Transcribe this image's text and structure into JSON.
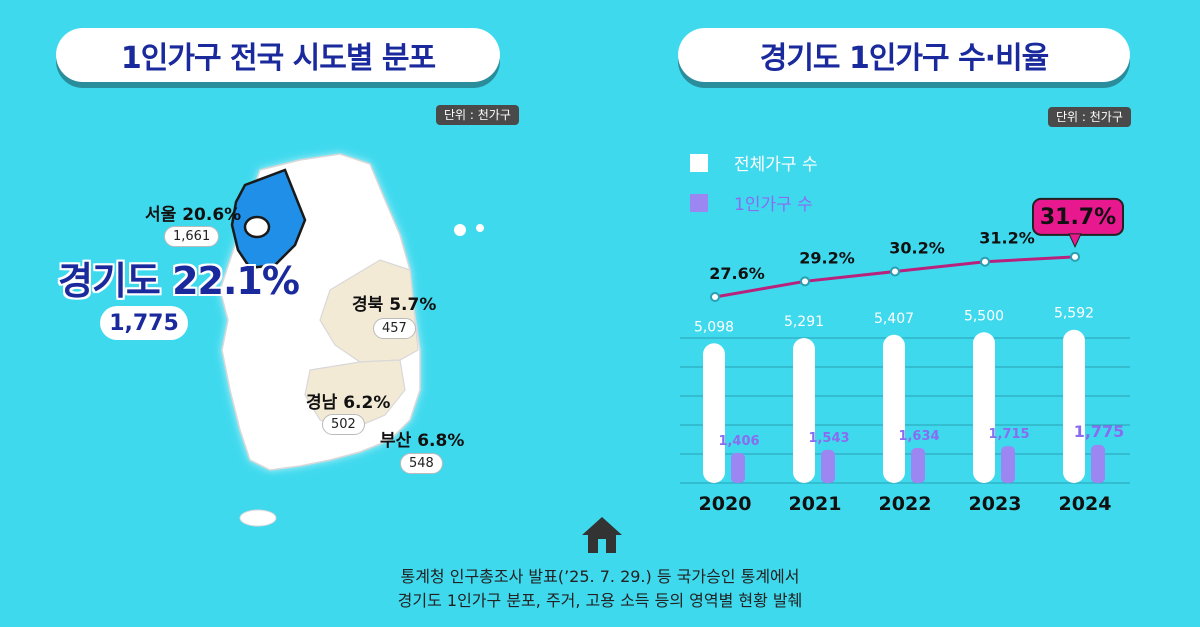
{
  "left_panel": {
    "title": "1인가구 전국 시도별 분포",
    "unit": "단위 : 천가구",
    "regions": {
      "seoul": {
        "label": "서울 20.6%",
        "value": "1,661"
      },
      "gyeonggi": {
        "label": "경기도 22.1%",
        "value": "1,775"
      },
      "gyeongbuk": {
        "label": "경북 5.7%",
        "value": "457"
      },
      "gyeongnam": {
        "label": "경남 6.2%",
        "value": "502"
      },
      "busan": {
        "label": "부산 6.8%",
        "value": "548"
      }
    },
    "colors": {
      "gyeonggi": "#1f8fe8",
      "highlight": "#f3ead6",
      "map": "#ffffff"
    }
  },
  "right_panel": {
    "title": "경기도 1인가구 수·비율",
    "unit": "단위 : 천가구"
  },
  "chart_data": {
    "type": "bar",
    "categories": [
      "2020",
      "2021",
      "2022",
      "2023",
      "2024"
    ],
    "series": [
      {
        "name": "전체가구 수",
        "values": [
          5098,
          5291,
          5407,
          5500,
          5592
        ],
        "labels": [
          "5,098",
          "5,291",
          "5,407",
          "5,500",
          "5,592"
        ],
        "color": "#ffffff"
      },
      {
        "name": "1인가구 수",
        "values": [
          1406,
          1543,
          1634,
          1715,
          1775
        ],
        "labels": [
          "1,406",
          "1,543",
          "1,634",
          "1,715",
          "1,775"
        ],
        "color": "#9b86f2"
      }
    ],
    "ratio_line": {
      "values": [
        27.6,
        29.2,
        30.2,
        31.2,
        31.7
      ],
      "labels": [
        "27.6%",
        "29.2%",
        "30.2%",
        "31.2%",
        "31.7%"
      ],
      "color": "#b8227c",
      "highlight_color": "#e8188e"
    },
    "legend_placement": "top-left",
    "grid": true
  },
  "footer": {
    "line1": "통계청 인구총조사 발표(’25. 7. 29.) 등 국가승인 통계에서",
    "line2": "경기도 1인가구 분포, 주거, 고용 소득 등의 영역별 현황 발췌",
    "icon": "home-icon"
  }
}
